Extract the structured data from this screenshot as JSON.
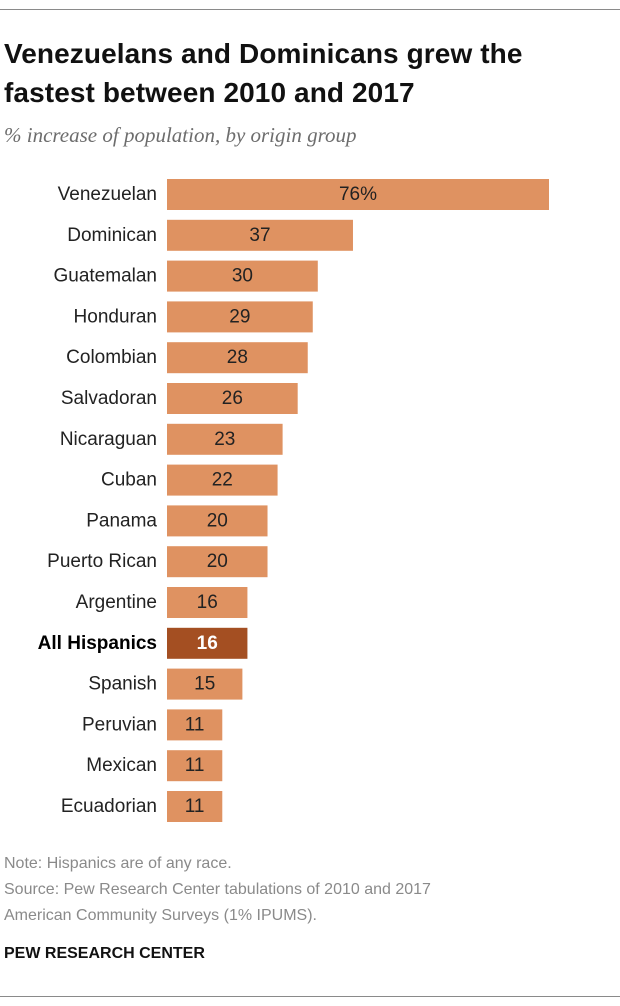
{
  "title": "Venezuelans and Dominicans grew the fastest between 2010 and 2017",
  "subtitle": "% increase of population, by origin group",
  "note": "Note: Hispanics are of any race.",
  "source_line1": "Source: Pew Research Center tabulations of 2010 and 2017",
  "source_line2": "American Community Surveys (1% IPUMS).",
  "brand": "PEW RESEARCH CENTER",
  "colors": {
    "bar": "#df9261",
    "highlight": "#a44f22"
  },
  "chart_data": {
    "type": "bar",
    "orientation": "horizontal",
    "title": "Venezuelans and Dominicans grew the fastest between 2010 and 2017",
    "subtitle": "% increase of population, by origin group",
    "categories": [
      "Venezuelan",
      "Dominican",
      "Guatemalan",
      "Honduran",
      "Colombian",
      "Salvadoran",
      "Nicaraguan",
      "Cuban",
      "Panama",
      "Puerto Rican",
      "Argentine",
      "All Hispanics",
      "Spanish",
      "Peruvian",
      "Mexican",
      "Ecuadorian"
    ],
    "values": [
      76,
      37,
      30,
      29,
      28,
      26,
      23,
      22,
      20,
      20,
      16,
      16,
      15,
      11,
      11,
      11
    ],
    "value_labels": [
      "76%",
      "37",
      "30",
      "29",
      "28",
      "26",
      "23",
      "22",
      "20",
      "20",
      "16",
      "16",
      "15",
      "11",
      "11",
      "11"
    ],
    "highlight": "All Hispanics",
    "xlim": [
      0,
      76
    ],
    "grid": false,
    "legend": "none"
  }
}
